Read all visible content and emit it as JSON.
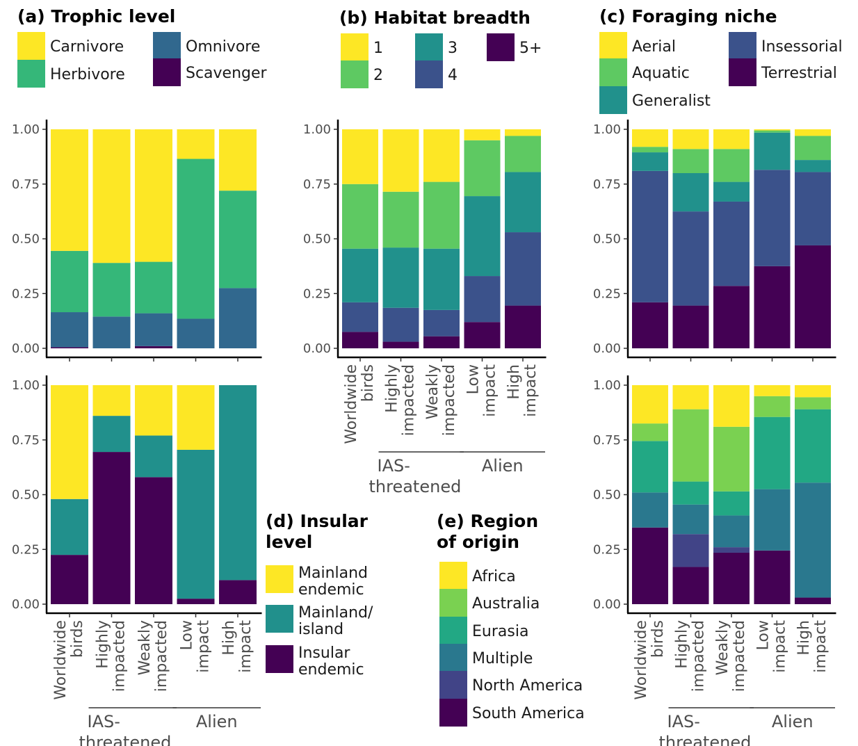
{
  "chart_data": [
    {
      "id": "trophic",
      "type": "bar",
      "stacked": true,
      "panel": "(a) Trophic level",
      "categories": [
        "Worldwide birds",
        "Highly impacted",
        "Weakly impacted",
        "Low impact",
        "High impact"
      ],
      "ylim": [
        0,
        1
      ],
      "yticks": [
        "0.00",
        "0.25",
        "0.50",
        "0.75",
        "1.00"
      ],
      "series": [
        {
          "name": "Scavenger",
          "color": "#440154",
          "values": [
            0.005,
            0.0,
            0.01,
            0.0,
            0.0
          ]
        },
        {
          "name": "Omnivore",
          "color": "#31688e",
          "values": [
            0.16,
            0.145,
            0.15,
            0.135,
            0.275
          ]
        },
        {
          "name": "Herbivore",
          "color": "#35b779",
          "values": [
            0.28,
            0.245,
            0.235,
            0.73,
            0.445
          ]
        },
        {
          "name": "Carnivore",
          "color": "#fde725",
          "values": [
            0.555,
            0.61,
            0.605,
            0.135,
            0.28
          ]
        }
      ]
    },
    {
      "id": "habitat",
      "type": "bar",
      "stacked": true,
      "panel": "(b) Habitat breadth",
      "categories": [
        "Worldwide birds",
        "Highly impacted",
        "Weakly impacted",
        "Low impact",
        "High impact"
      ],
      "ylim": [
        0,
        1
      ],
      "yticks": [
        "0.00",
        "0.25",
        "0.50",
        "0.75",
        "1.00"
      ],
      "series": [
        {
          "name": "5+",
          "color": "#440154",
          "values": [
            0.075,
            0.03,
            0.055,
            0.12,
            0.195
          ]
        },
        {
          "name": "4",
          "color": "#3b528b",
          "values": [
            0.135,
            0.155,
            0.12,
            0.21,
            0.335
          ]
        },
        {
          "name": "3",
          "color": "#21918c",
          "values": [
            0.245,
            0.275,
            0.28,
            0.365,
            0.275
          ]
        },
        {
          "name": "2",
          "color": "#5ec962",
          "values": [
            0.295,
            0.255,
            0.305,
            0.255,
            0.165
          ]
        },
        {
          "name": "1",
          "color": "#fde725",
          "values": [
            0.25,
            0.285,
            0.24,
            0.05,
            0.03
          ]
        }
      ]
    },
    {
      "id": "foraging",
      "type": "bar",
      "stacked": true,
      "panel": "(c) Foraging niche",
      "categories": [
        "Worldwide birds",
        "Highly impacted",
        "Weakly impacted",
        "Low impact",
        "High impact"
      ],
      "ylim": [
        0,
        1
      ],
      "yticks": [
        "0.00",
        "0.25",
        "0.50",
        "0.75",
        "1.00"
      ],
      "series": [
        {
          "name": "Terrestrial",
          "color": "#440154",
          "values": [
            0.21,
            0.195,
            0.285,
            0.375,
            0.47
          ]
        },
        {
          "name": "Insessorial",
          "color": "#3b528b",
          "values": [
            0.6,
            0.43,
            0.385,
            0.44,
            0.335
          ]
        },
        {
          "name": "Generalist",
          "color": "#21918c",
          "values": [
            0.085,
            0.175,
            0.09,
            0.17,
            0.055
          ]
        },
        {
          "name": "Aquatic",
          "color": "#5ec962",
          "values": [
            0.025,
            0.11,
            0.15,
            0.01,
            0.11
          ]
        },
        {
          "name": "Aerial",
          "color": "#fde725",
          "values": [
            0.08,
            0.09,
            0.09,
            0.005,
            0.03
          ]
        }
      ]
    },
    {
      "id": "insular",
      "type": "bar",
      "stacked": true,
      "panel": "(d) Insular level",
      "categories": [
        "Worldwide birds",
        "Highly impacted",
        "Weakly impacted",
        "Low impact",
        "High impact"
      ],
      "ylim": [
        0,
        1
      ],
      "yticks": [
        "0.00",
        "0.25",
        "0.50",
        "0.75",
        "1.00"
      ],
      "series": [
        {
          "name": "Insular endemic",
          "color": "#440154",
          "values": [
            0.225,
            0.695,
            0.58,
            0.025,
            0.11
          ]
        },
        {
          "name": "Mainland/ island",
          "color": "#21908c",
          "values": [
            0.255,
            0.165,
            0.19,
            0.68,
            0.89
          ]
        },
        {
          "name": "Mainland endemic",
          "color": "#fde725",
          "values": [
            0.52,
            0.14,
            0.23,
            0.295,
            0.0
          ]
        }
      ]
    },
    {
      "id": "region",
      "type": "bar",
      "stacked": true,
      "panel": "(e) Region of origin",
      "categories": [
        "Worldwide birds",
        "Highly impacted",
        "Weakly impacted",
        "Low impact",
        "High impact"
      ],
      "ylim": [
        0,
        1
      ],
      "yticks": [
        "0.00",
        "0.25",
        "0.50",
        "0.75",
        "1.00"
      ],
      "series": [
        {
          "name": "South America",
          "color": "#440154",
          "values": [
            0.35,
            0.17,
            0.235,
            0.245,
            0.03
          ]
        },
        {
          "name": "North America",
          "color": "#414487",
          "values": [
            0.0,
            0.15,
            0.025,
            0.0,
            0.0
          ]
        },
        {
          "name": "Multiple",
          "color": "#2a788e",
          "values": [
            0.16,
            0.135,
            0.145,
            0.28,
            0.525
          ]
        },
        {
          "name": "Eurasia",
          "color": "#22a884",
          "values": [
            0.235,
            0.105,
            0.11,
            0.33,
            0.335
          ]
        },
        {
          "name": "Australia",
          "color": "#7ad151",
          "values": [
            0.08,
            0.33,
            0.295,
            0.095,
            0.055
          ]
        },
        {
          "name": "Africa",
          "color": "#fde725",
          "values": [
            0.175,
            0.11,
            0.19,
            0.05,
            0.055
          ]
        }
      ]
    }
  ],
  "x_axis": {
    "tick_labels": [
      [
        "Worldwide",
        "birds"
      ],
      [
        "Highly",
        "impacted"
      ],
      [
        "Weakly",
        "impacted"
      ],
      [
        "Low",
        "impact"
      ],
      [
        "High",
        "impact"
      ]
    ],
    "groups": [
      {
        "label_lines": [
          "IAS-",
          "threatened"
        ],
        "from": 1,
        "to": 2
      },
      {
        "label_lines": [
          "Alien"
        ],
        "from": 3,
        "to": 4
      }
    ]
  },
  "legends": [
    {
      "id": "trophic",
      "title_lines": [
        "(a) Trophic level"
      ]
    },
    {
      "id": "habitat",
      "title_lines": [
        "(b) Habitat breadth"
      ]
    },
    {
      "id": "foraging",
      "title_lines": [
        "(c) Foraging niche"
      ]
    },
    {
      "id": "insular",
      "title_lines": [
        "(d) Insular",
        "level"
      ]
    },
    {
      "id": "region",
      "title_lines": [
        "(e) Region",
        "of origin"
      ]
    }
  ]
}
